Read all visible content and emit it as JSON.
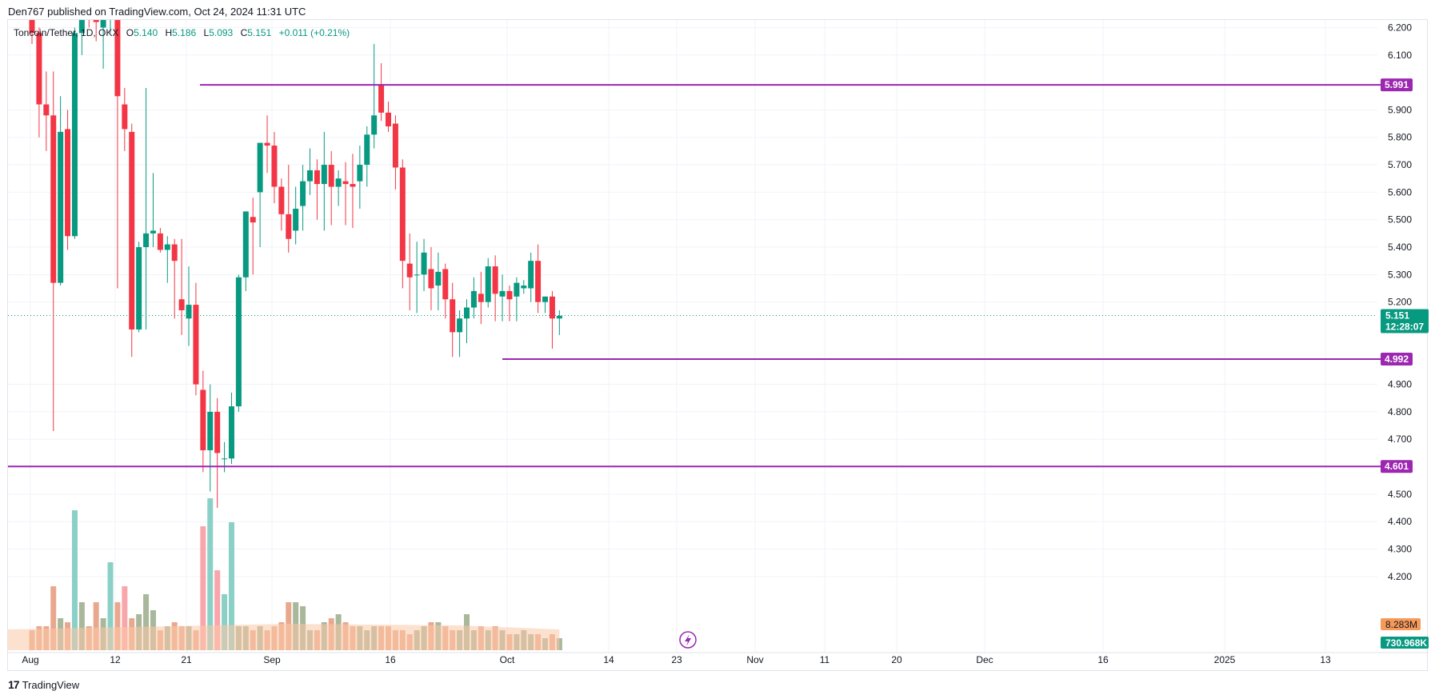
{
  "publisher": "Den767 published on TradingView.com, Oct 24, 2024 11:31 UTC",
  "legend": {
    "symbol": "Toncoin/Tether, 1D, OKX",
    "open_label": "O",
    "open": "5.140",
    "high_label": "H",
    "high": "5.186",
    "low_label": "L",
    "low": "5.093",
    "close_label": "C",
    "close": "5.151",
    "change": "+0.011 (+0.21%)"
  },
  "footer": {
    "logo": "17",
    "brand": "TradingView"
  },
  "colors": {
    "up": "#089981",
    "down": "#f23645",
    "up_volume": "#8bd0c7",
    "down_volume": "#f8a6ac",
    "level": "#9c27b0",
    "volume_ma": "#fcc9a8",
    "volume_tag": "#f79a59"
  },
  "chart_data": {
    "type": "candlestick",
    "y_range": [
      4.15,
      6.28
    ],
    "y_ticks": [
      "6.200",
      "6.100",
      "5.900",
      "5.800",
      "5.700",
      "5.600",
      "5.500",
      "5.400",
      "5.300",
      "5.200",
      "4.900",
      "4.800",
      "4.700",
      "4.500",
      "4.400",
      "4.300",
      "4.200"
    ],
    "x_ticks": [
      "Aug",
      "12",
      "21",
      "Sep",
      "16",
      "Oct",
      "14",
      "23",
      "Nov",
      "11",
      "20",
      "Dec",
      "16",
      "2025",
      "13"
    ],
    "bars_up": [
      "#089981",
      "#f23645"
    ],
    "candles": [
      [
        6.3,
        6.32,
        6.14,
        6.18
      ],
      [
        6.18,
        6.2,
        5.8,
        5.92
      ],
      [
        5.92,
        6.04,
        5.75,
        5.88
      ],
      [
        5.88,
        6.04,
        4.73,
        5.27
      ],
      [
        5.27,
        5.95,
        5.26,
        5.82
      ],
      [
        5.83,
        5.9,
        5.39,
        5.44
      ],
      [
        5.44,
        6.2,
        5.43,
        6.18
      ],
      [
        6.18,
        6.3,
        6.1,
        6.25
      ],
      [
        6.3,
        6.32,
        6.2,
        6.28
      ],
      [
        6.25,
        6.32,
        6.15,
        6.22
      ],
      [
        6.2,
        6.35,
        6.05,
        6.28
      ],
      [
        6.25,
        6.35,
        6.18,
        6.3
      ],
      [
        6.3,
        6.31,
        5.25,
        5.95
      ],
      [
        5.92,
        5.98,
        5.75,
        5.83
      ],
      [
        5.82,
        5.85,
        5.0,
        5.1
      ],
      [
        5.1,
        5.42,
        5.09,
        5.4
      ],
      [
        5.4,
        5.98,
        5.1,
        5.45
      ],
      [
        5.45,
        5.67,
        5.4,
        5.46
      ],
      [
        5.45,
        5.47,
        5.38,
        5.39
      ],
      [
        5.39,
        5.44,
        5.27,
        5.41
      ],
      [
        5.41,
        5.43,
        5.14,
        5.35
      ],
      [
        5.21,
        5.43,
        5.08,
        5.17
      ],
      [
        5.14,
        5.33,
        5.04,
        5.19
      ],
      [
        5.19,
        5.27,
        4.86,
        4.9
      ],
      [
        4.88,
        4.95,
        4.58,
        4.66
      ],
      [
        4.66,
        4.9,
        4.51,
        4.8
      ],
      [
        4.8,
        4.85,
        4.45,
        4.65
      ],
      [
        4.63,
        4.69,
        4.58,
        4.63
      ],
      [
        4.63,
        4.87,
        4.61,
        4.82
      ],
      [
        4.82,
        5.3,
        4.8,
        5.29
      ],
      [
        5.29,
        5.52,
        5.24,
        5.53
      ],
      [
        5.51,
        5.58,
        5.3,
        5.49
      ],
      [
        5.6,
        5.78,
        5.4,
        5.78
      ],
      [
        5.78,
        5.88,
        5.67,
        5.77
      ],
      [
        5.77,
        5.82,
        5.56,
        5.62
      ],
      [
        5.62,
        5.65,
        5.46,
        5.52
      ],
      [
        5.52,
        5.7,
        5.38,
        5.43
      ],
      [
        5.46,
        5.62,
        5.41,
        5.54
      ],
      [
        5.55,
        5.7,
        5.46,
        5.64
      ],
      [
        5.64,
        5.76,
        5.59,
        5.68
      ],
      [
        5.68,
        5.72,
        5.5,
        5.63
      ],
      [
        5.63,
        5.82,
        5.46,
        5.7
      ],
      [
        5.7,
        5.75,
        5.48,
        5.62
      ],
      [
        5.62,
        5.68,
        5.55,
        5.65
      ],
      [
        5.64,
        5.71,
        5.48,
        5.63
      ],
      [
        5.63,
        5.74,
        5.47,
        5.62
      ],
      [
        5.64,
        5.77,
        5.54,
        5.7
      ],
      [
        5.7,
        5.84,
        5.62,
        5.81
      ],
      [
        5.81,
        6.14,
        5.76,
        5.88
      ],
      [
        5.99,
        6.07,
        5.86,
        5.89
      ],
      [
        5.89,
        5.93,
        5.82,
        5.84
      ],
      [
        5.85,
        5.88,
        5.61,
        5.69
      ],
      [
        5.69,
        5.72,
        5.25,
        5.35
      ],
      [
        5.34,
        5.45,
        5.17,
        5.29
      ],
      [
        5.3,
        5.42,
        5.16,
        5.3
      ],
      [
        5.3,
        5.43,
        5.24,
        5.38
      ],
      [
        5.32,
        5.4,
        5.17,
        5.25
      ],
      [
        5.26,
        5.38,
        5.17,
        5.31
      ],
      [
        5.32,
        5.34,
        5.14,
        5.21
      ],
      [
        5.21,
        5.27,
        5.0,
        5.09
      ],
      [
        5.09,
        5.17,
        5.0,
        5.14
      ],
      [
        5.14,
        5.21,
        5.05,
        5.18
      ],
      [
        5.18,
        5.29,
        5.14,
        5.24
      ],
      [
        5.23,
        5.31,
        5.12,
        5.2
      ],
      [
        5.2,
        5.36,
        5.18,
        5.33
      ],
      [
        5.33,
        5.37,
        5.13,
        5.23
      ],
      [
        5.22,
        5.3,
        5.13,
        5.24
      ],
      [
        5.24,
        5.26,
        5.13,
        5.21
      ],
      [
        5.22,
        5.29,
        5.13,
        5.27
      ],
      [
        5.25,
        5.28,
        5.23,
        5.26
      ],
      [
        5.25,
        5.38,
        5.2,
        5.35
      ],
      [
        5.35,
        5.41,
        5.16,
        5.2
      ],
      [
        5.2,
        5.22,
        5.16,
        5.22
      ],
      [
        5.22,
        5.24,
        5.03,
        5.14
      ],
      [
        5.14,
        5.17,
        5.08,
        5.15
      ]
    ],
    "volume_max": 0.36,
    "volumes": [
      [
        0.05,
        0
      ],
      [
        0.06,
        0
      ],
      [
        0.06,
        0
      ],
      [
        0.16,
        0
      ],
      [
        0.08,
        0
      ],
      [
        0.07,
        0
      ],
      [
        0.35,
        1
      ],
      [
        0.12,
        0
      ],
      [
        0.06,
        0
      ],
      [
        0.12,
        0
      ],
      [
        0.08,
        0
      ],
      [
        0.22,
        1
      ],
      [
        0.12,
        0
      ],
      [
        0.16,
        1
      ],
      [
        0.08,
        0
      ],
      [
        0.09,
        0
      ],
      [
        0.14,
        0
      ],
      [
        0.1,
        0
      ],
      [
        0.05,
        0
      ],
      [
        0.06,
        0
      ],
      [
        0.07,
        0
      ],
      [
        0.06,
        0
      ],
      [
        0.06,
        0
      ],
      [
        0.05,
        0
      ],
      [
        0.31,
        1
      ],
      [
        0.38,
        1
      ],
      [
        0.2,
        1
      ],
      [
        0.14,
        1
      ],
      [
        0.32,
        1
      ],
      [
        0.06,
        0
      ],
      [
        0.06,
        0
      ],
      [
        0.05,
        0
      ],
      [
        0.06,
        0
      ],
      [
        0.05,
        0
      ],
      [
        0.06,
        0
      ],
      [
        0.07,
        0
      ],
      [
        0.12,
        0
      ],
      [
        0.12,
        0
      ],
      [
        0.11,
        0
      ],
      [
        0.05,
        0
      ],
      [
        0.05,
        0
      ],
      [
        0.07,
        0
      ],
      [
        0.08,
        0
      ],
      [
        0.09,
        0
      ],
      [
        0.07,
        0
      ],
      [
        0.06,
        0
      ],
      [
        0.06,
        0
      ],
      [
        0.05,
        0
      ],
      [
        0.06,
        0
      ],
      [
        0.06,
        0
      ],
      [
        0.06,
        0
      ],
      [
        0.05,
        0
      ],
      [
        0.05,
        0
      ],
      [
        0.04,
        0
      ],
      [
        0.05,
        0
      ],
      [
        0.06,
        0
      ],
      [
        0.07,
        0
      ],
      [
        0.07,
        0
      ],
      [
        0.06,
        0
      ],
      [
        0.05,
        0
      ],
      [
        0.05,
        0
      ],
      [
        0.09,
        0
      ],
      [
        0.05,
        0
      ],
      [
        0.06,
        0
      ],
      [
        0.05,
        0
      ],
      [
        0.06,
        0
      ],
      [
        0.05,
        0
      ],
      [
        0.04,
        0
      ],
      [
        0.04,
        0
      ],
      [
        0.05,
        0
      ],
      [
        0.04,
        0
      ],
      [
        0.04,
        0
      ],
      [
        0.03,
        0
      ],
      [
        0.04,
        0
      ],
      [
        0.03,
        0
      ]
    ],
    "levels": [
      {
        "value": 5.991,
        "label": "5.991"
      },
      {
        "value": 4.992,
        "label": "4.992"
      },
      {
        "value": 4.601,
        "label": "4.601"
      }
    ],
    "last_price": {
      "value": 5.151,
      "label": "5.151",
      "countdown": "12:28:07"
    },
    "volume_labels": {
      "ma": "8.283M",
      "volume": "730.968K"
    }
  }
}
